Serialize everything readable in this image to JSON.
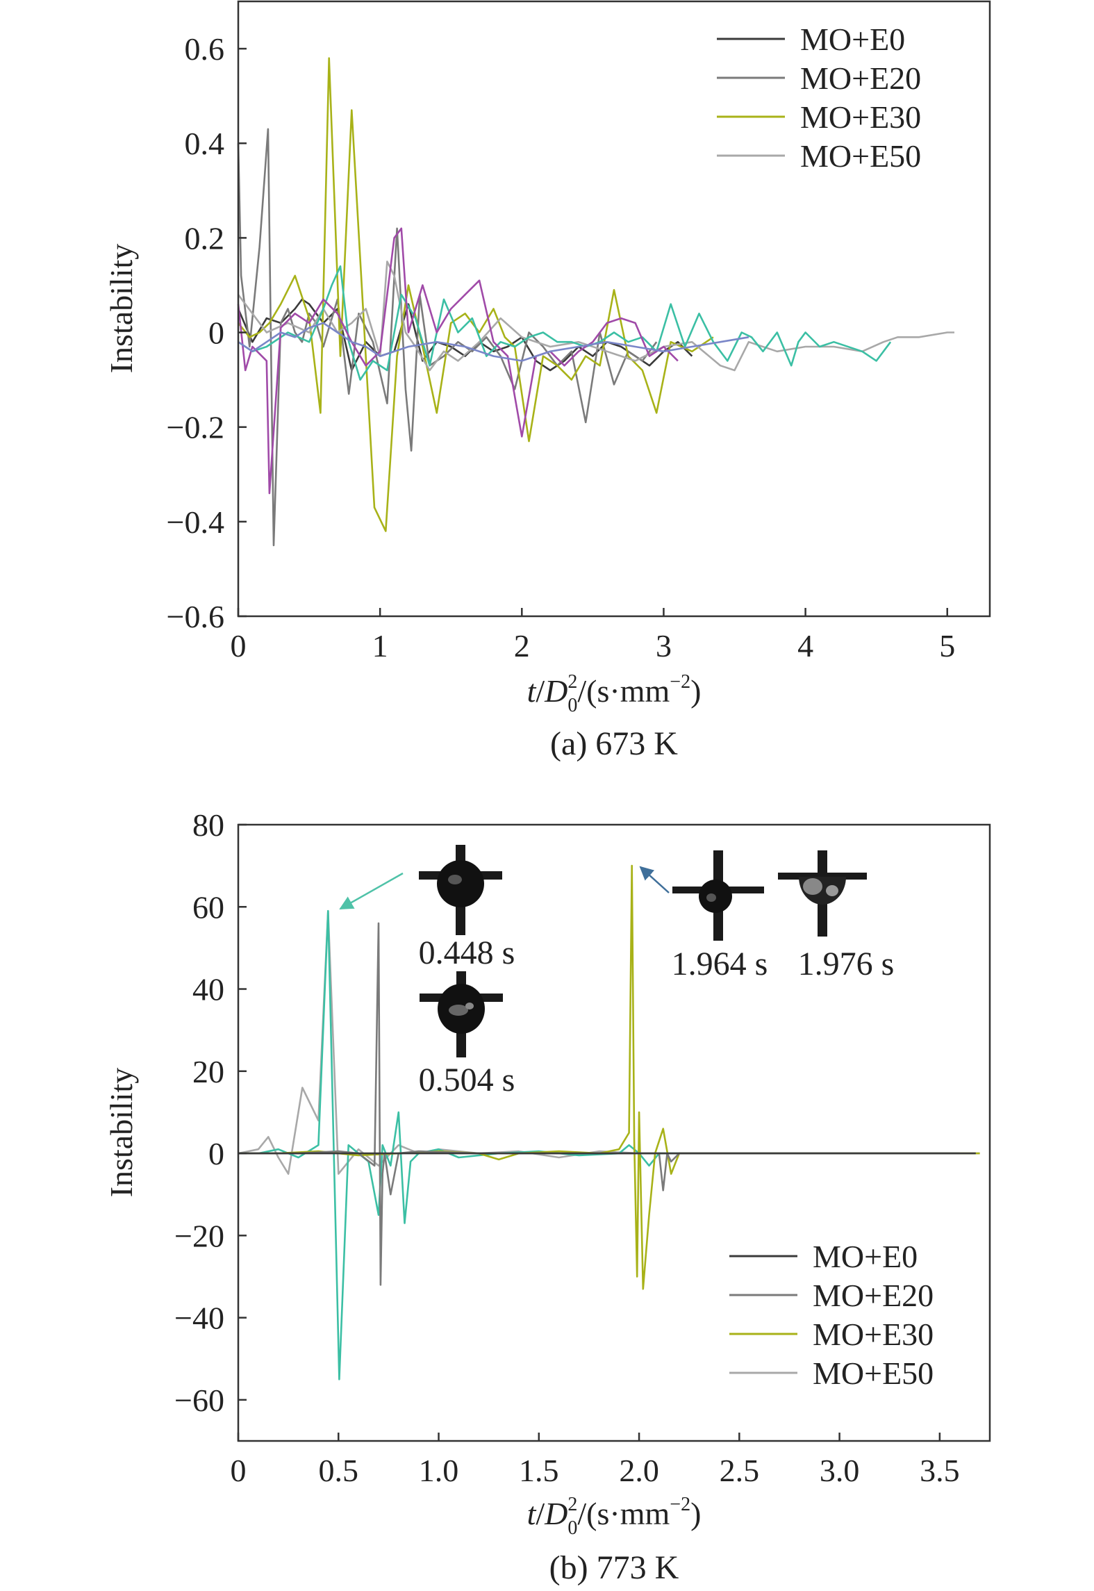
{
  "colors": {
    "E0": "#3a3a3a",
    "E20": "#7a7a7a",
    "E30": "#a8b218",
    "E50": "#a8a8a8",
    "teal": "#3bbfa4",
    "purple": "#a04aa8",
    "blue": "#7a86c8",
    "arrow_teal": "#4fc2a8",
    "arrow_blue": "#3f6f9a"
  },
  "chart_data": [
    {
      "id": "a",
      "type": "line",
      "caption": "(a) 673 K",
      "xlabel": {
        "t": "t",
        "D": "D",
        "sub": "0",
        "sup": "2",
        "unit": "/(s·mm",
        "exp": "−2",
        "close": ")"
      },
      "ylabel": "Instability",
      "xlim": [
        0,
        5.3
      ],
      "ylim": [
        -0.6,
        0.7
      ],
      "xticks": [
        0,
        1,
        2,
        3,
        4,
        5
      ],
      "xtick_labels": [
        "0",
        "1",
        "2",
        "3",
        "4",
        "5"
      ],
      "yticks": [
        -0.6,
        -0.4,
        -0.2,
        0,
        0.2,
        0.4,
        0.6
      ],
      "ytick_labels": [
        "−0.6",
        "−0.4",
        "−0.2",
        "0",
        "0.2",
        "0.4",
        "0.6"
      ],
      "legend_position": "top-right",
      "legend": [
        {
          "label": "MO+E0",
          "color": "#3a3a3a"
        },
        {
          "label": "MO+E20",
          "color": "#7a7a7a"
        },
        {
          "label": "MO+E30",
          "color": "#a8b218"
        },
        {
          "label": "MO+E50",
          "color": "#a8a8a8"
        }
      ],
      "series": [
        {
          "color": "#3a3a3a",
          "x": [
            0,
            0.1,
            0.2,
            0.3,
            0.4,
            0.45,
            0.5,
            0.55,
            0.6,
            0.7,
            0.8,
            0.9,
            1,
            1.1,
            1.2,
            1.3,
            1.4,
            1.5,
            1.6,
            1.7,
            1.8,
            1.9,
            2,
            2.1,
            2.2,
            2.3,
            2.4,
            2.5,
            2.6,
            2.7,
            2.8,
            2.9,
            3,
            3.1,
            3.2
          ],
          "y": [
            0.05,
            -0.02,
            0.03,
            0.02,
            0.05,
            0.07,
            0.06,
            0.04,
            0.02,
            0.05,
            -0.08,
            -0.02,
            -0.05,
            -0.04,
            0.06,
            -0.06,
            -0.02,
            -0.03,
            -0.05,
            -0.02,
            -0.04,
            -0.03,
            -0.01,
            -0.06,
            -0.08,
            -0.06,
            -0.03,
            -0.05,
            -0.02,
            -0.03,
            -0.05,
            -0.07,
            -0.04,
            -0.02,
            -0.05
          ]
        },
        {
          "color": "#7a7a7a",
          "x": [
            0,
            0.02,
            0.08,
            0.15,
            0.21,
            0.25,
            0.3,
            0.35,
            0.4,
            0.45,
            0.5,
            0.55,
            0.6,
            0.7,
            0.78,
            0.85,
            0.95,
            1.05,
            1.12,
            1.18,
            1.22,
            1.28,
            1.35,
            1.45,
            1.55,
            1.65,
            1.75,
            1.85,
            1.95,
            2.05,
            2.15,
            2.25,
            2.35,
            2.45,
            2.55,
            2.65,
            2.75,
            2.85,
            2.95
          ],
          "y": [
            0.4,
            0.12,
            -0.03,
            0.18,
            0.43,
            -0.45,
            0.02,
            0.05,
            0.0,
            -0.02,
            0.04,
            0.02,
            -0.03,
            0.07,
            -0.13,
            0.04,
            -0.02,
            -0.15,
            0.22,
            -0.12,
            -0.25,
            0.08,
            -0.07,
            -0.05,
            -0.02,
            -0.04,
            -0.01,
            -0.05,
            -0.12,
            0.0,
            -0.03,
            -0.07,
            -0.04,
            -0.19,
            0.0,
            -0.11,
            -0.04,
            -0.06,
            -0.02
          ]
        },
        {
          "color": "#a8b218",
          "x": [
            0,
            0.08,
            0.15,
            0.22,
            0.3,
            0.4,
            0.5,
            0.58,
            0.64,
            0.72,
            0.8,
            0.88,
            0.96,
            1.04,
            1.12,
            1.2,
            1.3,
            1.4,
            1.5,
            1.6,
            1.7,
            1.8,
            1.88,
            1.95,
            2.05,
            2.15,
            2.25,
            2.35,
            2.45,
            2.55,
            2.65,
            2.75,
            2.85,
            2.95,
            3.05,
            3.2,
            3.35
          ],
          "y": [
            0.02,
            -0.01,
            0.0,
            0.02,
            0.06,
            0.12,
            0.03,
            -0.17,
            0.58,
            -0.05,
            0.47,
            0.05,
            -0.37,
            -0.42,
            -0.05,
            0.1,
            -0.03,
            -0.17,
            0.02,
            0.04,
            0.0,
            0.05,
            -0.01,
            -0.03,
            -0.23,
            -0.05,
            -0.07,
            -0.1,
            -0.05,
            -0.07,
            0.09,
            -0.05,
            -0.08,
            -0.17,
            -0.02,
            -0.04,
            -0.01
          ]
        },
        {
          "color": "#a8a8a8",
          "x": [
            0,
            0.2,
            0.35,
            0.5,
            0.6,
            0.7,
            0.8,
            0.9,
            1.0,
            1.05,
            1.1,
            1.18,
            1.25,
            1.35,
            1.45,
            1.55,
            1.7,
            1.85,
            2.0,
            2.2,
            2.4,
            2.6,
            2.8,
            3.0,
            3.2,
            3.4,
            3.5,
            3.6,
            3.8,
            4.0,
            4.2,
            4.4,
            4.55,
            4.65,
            4.8,
            5.0,
            5.05
          ],
          "y": [
            0.08,
            0.0,
            0.02,
            0.0,
            0.05,
            0.0,
            0.02,
            0.05,
            -0.05,
            0.15,
            0.12,
            0.0,
            -0.03,
            -0.08,
            -0.04,
            -0.06,
            -0.02,
            0.03,
            -0.01,
            -0.03,
            -0.02,
            -0.04,
            -0.06,
            -0.03,
            -0.02,
            -0.07,
            -0.08,
            -0.02,
            -0.04,
            -0.03,
            -0.03,
            -0.04,
            -0.02,
            -0.01,
            -0.01,
            0.0,
            0.0
          ]
        },
        {
          "color": "#3bbfa4",
          "x": [
            0,
            0.1,
            0.2,
            0.35,
            0.5,
            0.6,
            0.66,
            0.72,
            0.78,
            0.86,
            0.95,
            1.05,
            1.15,
            1.25,
            1.35,
            1.45,
            1.55,
            1.65,
            1.75,
            1.85,
            1.95,
            2.05,
            2.15,
            2.25,
            2.35,
            2.45,
            2.55,
            2.65,
            2.75,
            2.85,
            2.95,
            3.05,
            3.15,
            3.25,
            3.35,
            3.45,
            3.55,
            3.62,
            3.7,
            3.8,
            3.9,
            3.95,
            4.0,
            4.1,
            4.2,
            4.4,
            4.5,
            4.6
          ],
          "y": [
            -0.02,
            -0.04,
            -0.03,
            0.0,
            -0.02,
            0.05,
            0.1,
            0.14,
            -0.02,
            -0.1,
            -0.06,
            -0.08,
            0.08,
            0.03,
            -0.07,
            0.07,
            0.0,
            0.03,
            -0.05,
            -0.02,
            -0.03,
            -0.01,
            0.0,
            -0.02,
            -0.02,
            -0.03,
            -0.02,
            0.0,
            -0.02,
            -0.01,
            -0.04,
            0.06,
            -0.03,
            0.04,
            -0.02,
            -0.06,
            0.0,
            -0.01,
            -0.04,
            0.0,
            -0.07,
            -0.02,
            0.0,
            -0.03,
            -0.02,
            -0.04,
            -0.06,
            -0.02
          ]
        },
        {
          "color": "#a04aa8",
          "x": [
            0,
            0.05,
            0.1,
            0.2,
            0.22,
            0.3,
            0.4,
            0.5,
            0.6,
            0.7,
            0.8,
            0.9,
            1.0,
            1.1,
            1.15,
            1.2,
            1.3,
            1.4,
            1.5,
            1.6,
            1.7,
            1.8,
            1.9,
            2.0,
            2.1,
            2.2,
            2.3,
            2.4,
            2.5,
            2.6,
            2.7,
            2.8,
            2.9,
            3.0,
            3.1
          ],
          "y": [
            0.06,
            -0.08,
            -0.03,
            -0.06,
            -0.34,
            0.01,
            0.04,
            0.02,
            0.07,
            0.04,
            -0.02,
            -0.07,
            -0.04,
            0.2,
            0.22,
            0.0,
            0.1,
            0.0,
            0.05,
            0.08,
            0.11,
            -0.02,
            -0.05,
            -0.22,
            -0.05,
            -0.04,
            -0.07,
            -0.04,
            -0.02,
            0.02,
            0.03,
            0.02,
            -0.05,
            -0.03,
            -0.06
          ]
        },
        {
          "color": "#7a86c8",
          "x": [
            0,
            0.1,
            0.2,
            0.3,
            0.4,
            0.5,
            0.6,
            0.7,
            0.8,
            0.9,
            1.0,
            1.2,
            1.4,
            1.6,
            1.8,
            2.0,
            2.2,
            2.4,
            2.6,
            2.8,
            3.0,
            3.2,
            3.4,
            3.6
          ],
          "y": [
            -0.02,
            -0.04,
            -0.02,
            0.0,
            -0.01,
            0.01,
            0.02,
            0.0,
            -0.02,
            -0.03,
            -0.05,
            -0.03,
            -0.02,
            -0.03,
            -0.05,
            -0.06,
            -0.04,
            -0.03,
            -0.02,
            -0.03,
            -0.04,
            -0.03,
            -0.02,
            -0.01
          ]
        }
      ]
    },
    {
      "id": "b",
      "type": "line",
      "caption": "(b) 773 K",
      "xlabel": {
        "t": "t",
        "D": "D",
        "sub": "0",
        "sup": "2",
        "unit": "/(s·mm",
        "exp": "−2",
        "close": ")"
      },
      "ylabel": "Instability",
      "xlim": [
        0,
        3.75
      ],
      "ylim": [
        -70,
        80
      ],
      "xticks": [
        0,
        0.5,
        1.0,
        1.5,
        2.0,
        2.5,
        3.0,
        3.5
      ],
      "xtick_labels": [
        "0",
        "0.5",
        "1.0",
        "1.5",
        "2.0",
        "2.5",
        "3.0",
        "3.5"
      ],
      "yticks": [
        -60,
        -40,
        -20,
        0,
        20,
        40,
        60,
        80
      ],
      "ytick_labels": [
        "−60",
        "−40",
        "−20",
        "0",
        "20",
        "40",
        "60",
        "80"
      ],
      "legend_position": "bottom-right",
      "legend": [
        {
          "label": "MO+E0",
          "color": "#3a3a3a"
        },
        {
          "label": "MO+E20",
          "color": "#7a7a7a"
        },
        {
          "label": "MO+E30",
          "color": "#a8b218"
        },
        {
          "label": "MO+E50",
          "color": "#a8a8a8"
        }
      ],
      "series": [
        {
          "color": "#a8a8a8",
          "x": [
            0,
            0.05,
            0.1,
            0.15,
            0.2,
            0.25,
            0.32,
            0.4,
            0.448,
            0.5,
            0.55,
            0.6,
            0.7,
            0.8,
            0.9,
            1.0,
            1.2,
            1.4,
            1.6,
            1.8,
            2.0,
            2.5,
            3.0,
            3.7
          ],
          "y": [
            0,
            0.5,
            1,
            4,
            -1,
            -5,
            16,
            8,
            59,
            -5,
            -2,
            1,
            -3,
            2,
            0,
            1,
            0,
            0.5,
            -1,
            0.5,
            0,
            0,
            0,
            0
          ]
        },
        {
          "color": "#3bbfa4",
          "x": [
            0,
            0.1,
            0.2,
            0.3,
            0.4,
            0.448,
            0.504,
            0.55,
            0.6,
            0.65,
            0.7,
            0.72,
            0.76,
            0.8,
            0.83,
            0.86,
            0.9,
            1.0,
            1.1,
            1.3,
            1.5,
            1.7,
            1.9,
            1.95,
            2.0,
            2.05,
            2.1,
            2.2,
            2.5,
            3.0,
            3.6
          ],
          "y": [
            0,
            0,
            1,
            -1,
            2,
            59,
            -55,
            2,
            0,
            -2,
            -15,
            2,
            -3,
            10,
            -17,
            -2,
            0,
            1,
            -1,
            0,
            0.5,
            -0.5,
            0,
            2,
            0,
            -3,
            0,
            0,
            0,
            0,
            0
          ]
        },
        {
          "color": "#a8b218",
          "x": [
            0,
            0.2,
            0.4,
            0.6,
            0.8,
            1.0,
            1.2,
            1.3,
            1.4,
            1.6,
            1.8,
            1.9,
            1.95,
            1.964,
            1.976,
            1.99,
            2.0,
            2.02,
            2.05,
            2.08,
            2.12,
            2.16,
            2.2,
            2.3,
            2.5,
            3.0,
            3.5,
            3.7
          ],
          "y": [
            0,
            0,
            0.5,
            -0.5,
            0,
            0.5,
            0,
            -1.5,
            0,
            0.5,
            0,
            1,
            5,
            70,
            3,
            -30,
            10,
            -33,
            -15,
            0,
            6,
            -5,
            0,
            0,
            0,
            0,
            0,
            0
          ]
        },
        {
          "color": "#7a7a7a",
          "x": [
            0,
            0.3,
            0.5,
            0.6,
            0.68,
            0.7,
            0.71,
            0.72,
            0.73,
            0.76,
            0.8,
            0.9,
            1.2,
            1.6,
            2.0,
            2.1,
            2.12,
            2.14,
            2.16,
            2.2,
            2.5,
            3.0,
            3.6
          ],
          "y": [
            0,
            0,
            0.5,
            0,
            -3,
            56,
            -32,
            -5,
            0,
            -10,
            0,
            0.5,
            0,
            0,
            0,
            0,
            -9,
            0,
            -2,
            0,
            0,
            0,
            0
          ]
        },
        {
          "color": "#3a3a3a",
          "x": [
            0,
            0.5,
            1.0,
            1.5,
            2.0,
            2.5,
            3.0,
            3.5,
            3.68
          ],
          "y": [
            0,
            0,
            0,
            0,
            0,
            0,
            0,
            0,
            0
          ]
        }
      ],
      "annotations": [
        {
          "text": "0.448 s",
          "arrow_color": "#4fc2a8"
        },
        {
          "text": "0.504 s"
        },
        {
          "text": "1.964 s",
          "arrow_color": "#3f6f9a"
        },
        {
          "text": "1.976 s"
        }
      ]
    }
  ]
}
